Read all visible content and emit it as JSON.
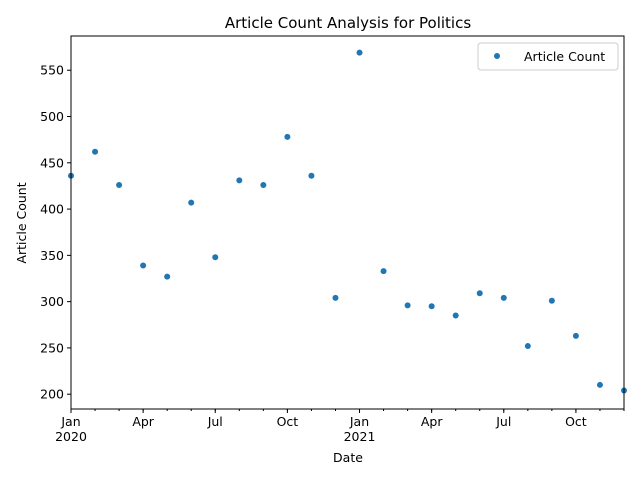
{
  "chart_data": {
    "type": "scatter",
    "title": "Article Count Analysis for Politics",
    "xlabel": "Date",
    "ylabel": "Article Count",
    "x": [
      "2020-01",
      "2020-02",
      "2020-03",
      "2020-04",
      "2020-05",
      "2020-06",
      "2020-07",
      "2020-08",
      "2020-09",
      "2020-10",
      "2020-11",
      "2020-12",
      "2021-01",
      "2021-02",
      "2021-03",
      "2021-04",
      "2021-05",
      "2021-06",
      "2021-07",
      "2021-08",
      "2021-09",
      "2021-10",
      "2021-11",
      "2021-12"
    ],
    "series": [
      {
        "name": "Article Count",
        "color": "#1f77b4",
        "values": [
          436,
          462,
          426,
          339,
          327,
          407,
          348,
          431,
          426,
          478,
          436,
          304,
          569,
          333,
          296,
          295,
          285,
          309,
          304,
          252,
          301,
          263,
          210,
          204
        ]
      }
    ],
    "xlim": [
      "2020-01",
      "2021-12"
    ],
    "ylim": [
      184,
      587
    ],
    "yticks": [
      200,
      250,
      300,
      350,
      400,
      450,
      500,
      550
    ],
    "xticks_major": [
      {
        "month": "2020-01",
        "label": "Jan",
        "year": "2020"
      },
      {
        "month": "2020-04",
        "label": "Apr",
        "year": ""
      },
      {
        "month": "2020-07",
        "label": "Jul",
        "year": ""
      },
      {
        "month": "2020-10",
        "label": "Oct",
        "year": ""
      },
      {
        "month": "2021-01",
        "label": "Jan",
        "year": "2021"
      },
      {
        "month": "2021-04",
        "label": "Apr",
        "year": ""
      },
      {
        "month": "2021-07",
        "label": "Jul",
        "year": ""
      },
      {
        "month": "2021-10",
        "label": "Oct",
        "year": ""
      }
    ],
    "grid": false,
    "legend_position": "top-right"
  }
}
